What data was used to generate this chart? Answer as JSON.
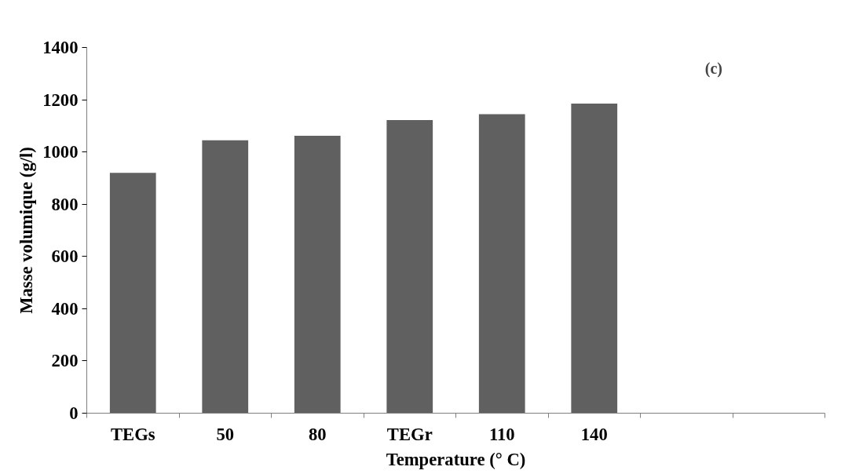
{
  "chart_data": {
    "type": "bar",
    "xlabel": "Temperature (° C)",
    "ylabel": "Masse volumique (g/l)",
    "categories": [
      "TEGs",
      "50",
      "80",
      "TEGr",
      "110",
      "140",
      null,
      null
    ],
    "values": [
      920,
      1045,
      1062,
      1122,
      1145,
      1185,
      null,
      null
    ],
    "color": "#606060",
    "ylim": [
      0,
      1400
    ],
    "yticks": [
      0,
      200,
      400,
      600,
      800,
      1000,
      1200,
      1400
    ],
    "grid": false,
    "annotations": [
      "(c)"
    ]
  }
}
